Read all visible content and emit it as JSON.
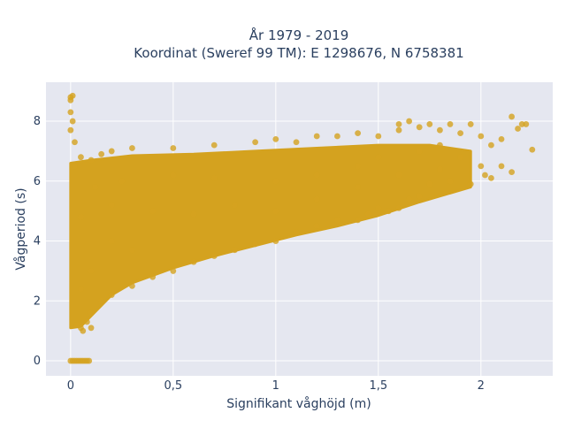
{
  "chart_data": {
    "type": "scatter",
    "title": "År 1979 - 2019",
    "subtitle": "Koordinat (Sweref 99 TM): E 1298676, N 6758381",
    "xlabel": "Signifikant våghöjd (m)",
    "ylabel": "Vågperiod (s)",
    "xlim": [
      -0.12,
      2.35
    ],
    "ylim": [
      -0.5,
      9.3
    ],
    "x_ticks": [
      0,
      0.5,
      1,
      1.5,
      2
    ],
    "x_tick_labels": [
      "0",
      "0,5",
      "1",
      "1,5",
      "2"
    ],
    "y_ticks": [
      0,
      2,
      4,
      6,
      8
    ],
    "y_tick_labels": [
      "0",
      "2",
      "4",
      "6",
      "8"
    ],
    "grid": true,
    "legend": "none",
    "marker_color": "#D4A21F",
    "plot_background": "#E5E7F0",
    "series": [
      {
        "points": [
          [
            0,
            0
          ],
          [
            0.01,
            0
          ],
          [
            0.02,
            0
          ],
          [
            0.03,
            0
          ],
          [
            0.04,
            0
          ],
          [
            0.05,
            0
          ],
          [
            0.06,
            0
          ],
          [
            0.07,
            0
          ],
          [
            0.08,
            0
          ],
          [
            0.09,
            0
          ],
          [
            0,
            8.8
          ],
          [
            0,
            8.7
          ],
          [
            0.01,
            8.85
          ],
          [
            0,
            8.3
          ],
          [
            0.01,
            8.0
          ],
          [
            0,
            7.7
          ],
          [
            0.02,
            7.3
          ],
          [
            0.02,
            6.5
          ],
          [
            0.05,
            6.8
          ],
          [
            0.1,
            6.7
          ],
          [
            0.15,
            6.9
          ],
          [
            0.2,
            7.0
          ],
          [
            0.3,
            7.1
          ],
          [
            0.5,
            7.1
          ],
          [
            0.7,
            7.2
          ],
          [
            0.9,
            7.3
          ],
          [
            1.0,
            7.4
          ],
          [
            1.1,
            7.3
          ],
          [
            1.2,
            7.5
          ],
          [
            1.3,
            7.5
          ],
          [
            1.4,
            7.6
          ],
          [
            1.5,
            7.5
          ],
          [
            1.6,
            7.7
          ],
          [
            1.6,
            7.9
          ],
          [
            1.65,
            8.0
          ],
          [
            1.7,
            7.8
          ],
          [
            1.75,
            7.9
          ],
          [
            1.8,
            7.7
          ],
          [
            1.85,
            7.9
          ],
          [
            1.9,
            7.6
          ],
          [
            1.95,
            7.9
          ],
          [
            2.0,
            7.5
          ],
          [
            2.05,
            7.2
          ],
          [
            2.1,
            7.4
          ],
          [
            2.15,
            8.15
          ],
          [
            2.18,
            7.75
          ],
          [
            2.2,
            7.9
          ],
          [
            2.22,
            7.9
          ],
          [
            2.25,
            7.05
          ],
          [
            2.0,
            6.5
          ],
          [
            2.02,
            6.2
          ],
          [
            2.05,
            6.1
          ],
          [
            2.1,
            6.5
          ],
          [
            2.15,
            6.3
          ],
          [
            1.95,
            5.9
          ],
          [
            1.85,
            6.0
          ],
          [
            1.8,
            6.4
          ],
          [
            1.75,
            5.9
          ],
          [
            1.7,
            5.5
          ],
          [
            1.65,
            5.4
          ],
          [
            1.6,
            5.1
          ],
          [
            1.55,
            5.0
          ],
          [
            1.5,
            5.1
          ],
          [
            1.45,
            4.9
          ],
          [
            1.4,
            4.7
          ],
          [
            1.3,
            4.7
          ],
          [
            1.2,
            4.5
          ],
          [
            1.1,
            4.3
          ],
          [
            1.0,
            4.0
          ],
          [
            0.9,
            3.9
          ],
          [
            0.8,
            3.7
          ],
          [
            0.7,
            3.5
          ],
          [
            0.6,
            3.3
          ],
          [
            0.5,
            3.0
          ],
          [
            0.4,
            2.8
          ],
          [
            0.3,
            2.5
          ],
          [
            0.2,
            2.2
          ],
          [
            0.15,
            2.0
          ],
          [
            0.1,
            1.6
          ],
          [
            0.08,
            1.3
          ],
          [
            0.05,
            1.1
          ],
          [
            0.03,
            1.2
          ],
          [
            0.06,
            1.0
          ],
          [
            0.1,
            1.1
          ],
          [
            0.5,
            6.2
          ],
          [
            0.7,
            6.1
          ],
          [
            1.0,
            6.0
          ],
          [
            1.2,
            6.2
          ],
          [
            1.4,
            6.5
          ],
          [
            1.5,
            6.8
          ],
          [
            1.7,
            7.0
          ],
          [
            1.8,
            7.2
          ],
          [
            0.4,
            5.0
          ],
          [
            0.6,
            4.9
          ],
          [
            0.8,
            5.2
          ],
          [
            1.0,
            5.0
          ],
          [
            1.2,
            5.4
          ],
          [
            1.4,
            5.8
          ],
          [
            1.6,
            6.2
          ],
          [
            1.9,
            6.8
          ],
          [
            0.2,
            4.0
          ],
          [
            0.3,
            3.7
          ],
          [
            0.2,
            5.2
          ],
          [
            0.1,
            3.0
          ],
          [
            0.05,
            4.8
          ],
          [
            0.05,
            2.4
          ],
          [
            0.12,
            5.8
          ],
          [
            0.25,
            6.0
          ]
        ]
      }
    ],
    "density": {
      "note": "dense band",
      "x_min": 0,
      "x_max": 1.95,
      "upper": [
        [
          0,
          6.6
        ],
        [
          0.1,
          6.7
        ],
        [
          0.3,
          6.85
        ],
        [
          0.6,
          6.9
        ],
        [
          0.9,
          7.0
        ],
        [
          1.2,
          7.1
        ],
        [
          1.5,
          7.2
        ],
        [
          1.75,
          7.2
        ],
        [
          1.95,
          7.0
        ]
      ],
      "lower": [
        [
          0,
          1.1
        ],
        [
          0.05,
          1.15
        ],
        [
          0.1,
          1.5
        ],
        [
          0.2,
          2.2
        ],
        [
          0.3,
          2.6
        ],
        [
          0.5,
          3.1
        ],
        [
          0.7,
          3.5
        ],
        [
          0.9,
          3.85
        ],
        [
          1.1,
          4.2
        ],
        [
          1.3,
          4.5
        ],
        [
          1.5,
          4.85
        ],
        [
          1.7,
          5.3
        ],
        [
          1.95,
          5.8
        ]
      ]
    }
  }
}
